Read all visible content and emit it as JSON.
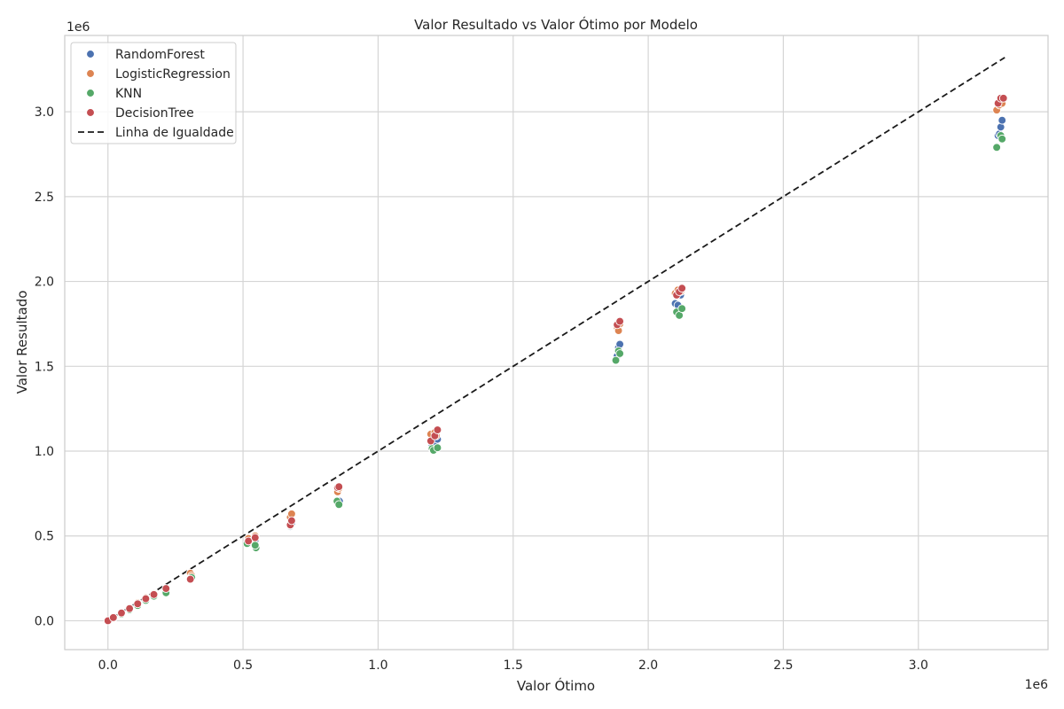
{
  "chart_data": {
    "type": "scatter",
    "title": "Valor Resultado vs Valor Ótimo por Modelo",
    "xlabel": "Valor Ótimo",
    "ylabel": "Valor Resultado",
    "x_offset_label": "1e6",
    "y_offset_label": "1e6",
    "xlim": [
      -0.16,
      3.48
    ],
    "ylim": [
      -0.17,
      3.45
    ],
    "xticks": [
      0.0,
      0.5,
      1.0,
      1.5,
      2.0,
      2.5,
      3.0
    ],
    "xtick_labels": [
      "0.0",
      "0.5",
      "1.0",
      "1.5",
      "2.0",
      "2.5",
      "3.0"
    ],
    "yticks": [
      0.0,
      0.5,
      1.0,
      1.5,
      2.0,
      2.5,
      3.0
    ],
    "ytick_labels": [
      "0.0",
      "0.5",
      "1.0",
      "1.5",
      "2.0",
      "2.5",
      "3.0"
    ],
    "grid": true,
    "legend_position": "top-left",
    "series": [
      {
        "name": "RandomForest",
        "color": "#4c72b0",
        "points": [
          [
            0.0,
            0.0
          ],
          [
            0.02,
            0.018
          ],
          [
            0.05,
            0.045
          ],
          [
            0.08,
            0.07
          ],
          [
            0.11,
            0.098
          ],
          [
            0.14,
            0.125
          ],
          [
            0.17,
            0.15
          ],
          [
            0.215,
            0.178
          ],
          [
            0.31,
            0.262
          ],
          [
            0.518,
            0.455
          ],
          [
            0.545,
            0.475
          ],
          [
            0.675,
            0.555
          ],
          [
            0.68,
            0.575
          ],
          [
            0.85,
            0.695
          ],
          [
            0.857,
            0.705
          ],
          [
            1.2,
            1.03
          ],
          [
            1.21,
            1.045
          ],
          [
            1.22,
            1.07
          ],
          [
            1.885,
            1.56
          ],
          [
            1.89,
            1.61
          ],
          [
            1.895,
            1.63
          ],
          [
            2.1,
            1.87
          ],
          [
            2.11,
            1.86
          ],
          [
            2.12,
            1.92
          ],
          [
            3.295,
            2.86
          ],
          [
            3.3,
            2.87
          ],
          [
            3.305,
            2.91
          ],
          [
            3.31,
            2.95
          ]
        ]
      },
      {
        "name": "LogisticRegression",
        "color": "#dd8452",
        "points": [
          [
            0.0,
            0.0
          ],
          [
            0.02,
            0.02
          ],
          [
            0.05,
            0.047
          ],
          [
            0.08,
            0.075
          ],
          [
            0.11,
            0.105
          ],
          [
            0.14,
            0.135
          ],
          [
            0.17,
            0.16
          ],
          [
            0.215,
            0.19
          ],
          [
            0.305,
            0.28
          ],
          [
            0.31,
            0.265
          ],
          [
            0.52,
            0.485
          ],
          [
            0.53,
            0.47
          ],
          [
            0.545,
            0.5
          ],
          [
            0.675,
            0.61
          ],
          [
            0.68,
            0.63
          ],
          [
            0.85,
            0.76
          ],
          [
            0.855,
            0.78
          ],
          [
            1.195,
            1.1
          ],
          [
            1.21,
            1.11
          ],
          [
            1.215,
            1.09
          ],
          [
            1.885,
            1.73
          ],
          [
            1.89,
            1.71
          ],
          [
            1.895,
            1.75
          ],
          [
            2.1,
            1.93
          ],
          [
            2.11,
            1.95
          ],
          [
            2.12,
            1.94
          ],
          [
            3.29,
            3.01
          ],
          [
            3.3,
            3.04
          ],
          [
            3.31,
            3.05
          ]
        ]
      },
      {
        "name": "KNN",
        "color": "#55a868",
        "points": [
          [
            0.0,
            0.0
          ],
          [
            0.02,
            0.016
          ],
          [
            0.05,
            0.04
          ],
          [
            0.08,
            0.065
          ],
          [
            0.11,
            0.09
          ],
          [
            0.14,
            0.12
          ],
          [
            0.17,
            0.145
          ],
          [
            0.215,
            0.165
          ],
          [
            0.31,
            0.255
          ],
          [
            0.515,
            0.455
          ],
          [
            0.548,
            0.43
          ],
          [
            0.545,
            0.445
          ],
          [
            0.675,
            0.56
          ],
          [
            0.848,
            0.705
          ],
          [
            0.855,
            0.685
          ],
          [
            1.2,
            1.015
          ],
          [
            1.205,
            1.005
          ],
          [
            1.22,
            1.02
          ],
          [
            1.88,
            1.535
          ],
          [
            1.89,
            1.59
          ],
          [
            1.895,
            1.575
          ],
          [
            2.105,
            1.82
          ],
          [
            2.115,
            1.8
          ],
          [
            2.125,
            1.84
          ],
          [
            3.29,
            2.79
          ],
          [
            3.305,
            2.86
          ],
          [
            3.31,
            2.84
          ]
        ]
      },
      {
        "name": "DecisionTree",
        "color": "#c44e52",
        "points": [
          [
            0.0,
            0.0
          ],
          [
            0.02,
            0.019
          ],
          [
            0.05,
            0.046
          ],
          [
            0.08,
            0.072
          ],
          [
            0.11,
            0.1
          ],
          [
            0.14,
            0.13
          ],
          [
            0.17,
            0.155
          ],
          [
            0.215,
            0.19
          ],
          [
            0.305,
            0.245
          ],
          [
            0.52,
            0.47
          ],
          [
            0.545,
            0.49
          ],
          [
            0.675,
            0.565
          ],
          [
            0.68,
            0.59
          ],
          [
            0.85,
            0.785
          ],
          [
            0.855,
            0.79
          ],
          [
            1.195,
            1.06
          ],
          [
            1.21,
            1.09
          ],
          [
            1.22,
            1.125
          ],
          [
            1.885,
            1.745
          ],
          [
            1.895,
            1.765
          ],
          [
            2.105,
            1.92
          ],
          [
            2.115,
            1.94
          ],
          [
            2.125,
            1.96
          ],
          [
            3.295,
            3.05
          ],
          [
            3.305,
            3.08
          ],
          [
            3.315,
            3.08
          ]
        ]
      }
    ],
    "reference_line": {
      "name": "Linha de Igualdade",
      "color": "#1a1a1a",
      "style": "dashed",
      "from": [
        0.0,
        0.0
      ],
      "to": [
        3.32,
        3.32
      ]
    }
  }
}
